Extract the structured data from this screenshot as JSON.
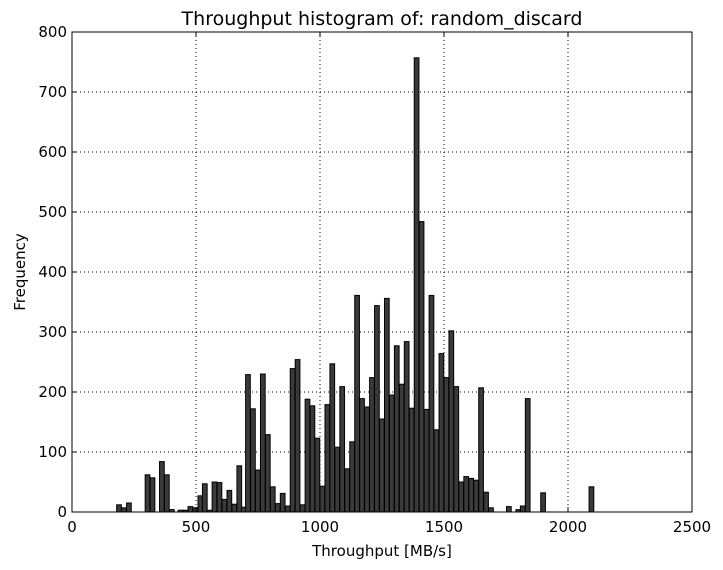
{
  "chart_data": {
    "type": "bar",
    "title": "Throughput histogram of: random_discard",
    "xlabel": "Throughput [MB/s]",
    "ylabel": "Frequency",
    "xlim": [
      0,
      2500
    ],
    "ylim": [
      0,
      800
    ],
    "x_ticks": [
      "0",
      "500",
      "1000",
      "1500",
      "2000",
      "2500"
    ],
    "y_ticks": [
      "0",
      "100",
      "200",
      "300",
      "400",
      "500",
      "600",
      "700",
      "800"
    ],
    "grid": true,
    "bar_color": "#3a3a3a",
    "bin_width": 19,
    "bins": [
      {
        "x": 180,
        "value": 12
      },
      {
        "x": 200,
        "value": 7
      },
      {
        "x": 220,
        "value": 15
      },
      {
        "x": 295,
        "value": 62
      },
      {
        "x": 315,
        "value": 57
      },
      {
        "x": 353,
        "value": 84
      },
      {
        "x": 373,
        "value": 62
      },
      {
        "x": 393,
        "value": 4
      },
      {
        "x": 428,
        "value": 3
      },
      {
        "x": 448,
        "value": 3
      },
      {
        "x": 468,
        "value": 9
      },
      {
        "x": 488,
        "value": 7
      },
      {
        "x": 508,
        "value": 27
      },
      {
        "x": 526,
        "value": 47
      },
      {
        "x": 545,
        "value": 3
      },
      {
        "x": 565,
        "value": 50
      },
      {
        "x": 585,
        "value": 49
      },
      {
        "x": 605,
        "value": 21
      },
      {
        "x": 625,
        "value": 36
      },
      {
        "x": 645,
        "value": 13
      },
      {
        "x": 665,
        "value": 77
      },
      {
        "x": 683,
        "value": 8
      },
      {
        "x": 700,
        "value": 229
      },
      {
        "x": 720,
        "value": 172
      },
      {
        "x": 740,
        "value": 70
      },
      {
        "x": 760,
        "value": 230
      },
      {
        "x": 780,
        "value": 129
      },
      {
        "x": 800,
        "value": 42
      },
      {
        "x": 820,
        "value": 14
      },
      {
        "x": 840,
        "value": 31
      },
      {
        "x": 860,
        "value": 10
      },
      {
        "x": 880,
        "value": 239
      },
      {
        "x": 900,
        "value": 254
      },
      {
        "x": 920,
        "value": 12
      },
      {
        "x": 940,
        "value": 188
      },
      {
        "x": 960,
        "value": 177
      },
      {
        "x": 980,
        "value": 123
      },
      {
        "x": 1000,
        "value": 43
      },
      {
        "x": 1020,
        "value": 179
      },
      {
        "x": 1040,
        "value": 247
      },
      {
        "x": 1060,
        "value": 108
      },
      {
        "x": 1080,
        "value": 209
      },
      {
        "x": 1100,
        "value": 72
      },
      {
        "x": 1120,
        "value": 117
      },
      {
        "x": 1140,
        "value": 361
      },
      {
        "x": 1160,
        "value": 189
      },
      {
        "x": 1180,
        "value": 175
      },
      {
        "x": 1200,
        "value": 224
      },
      {
        "x": 1220,
        "value": 344
      },
      {
        "x": 1240,
        "value": 155
      },
      {
        "x": 1260,
        "value": 356
      },
      {
        "x": 1280,
        "value": 195
      },
      {
        "x": 1300,
        "value": 277
      },
      {
        "x": 1320,
        "value": 213
      },
      {
        "x": 1340,
        "value": 284
      },
      {
        "x": 1360,
        "value": 173
      },
      {
        "x": 1380,
        "value": 757
      },
      {
        "x": 1400,
        "value": 484
      },
      {
        "x": 1420,
        "value": 171
      },
      {
        "x": 1440,
        "value": 361
      },
      {
        "x": 1460,
        "value": 137
      },
      {
        "x": 1480,
        "value": 264
      },
      {
        "x": 1500,
        "value": 224
      },
      {
        "x": 1520,
        "value": 302
      },
      {
        "x": 1540,
        "value": 209
      },
      {
        "x": 1560,
        "value": 50
      },
      {
        "x": 1580,
        "value": 59
      },
      {
        "x": 1600,
        "value": 56
      },
      {
        "x": 1620,
        "value": 53
      },
      {
        "x": 1640,
        "value": 207
      },
      {
        "x": 1660,
        "value": 33
      },
      {
        "x": 1680,
        "value": 7
      },
      {
        "x": 1752,
        "value": 9
      },
      {
        "x": 1790,
        "value": 4
      },
      {
        "x": 1808,
        "value": 10
      },
      {
        "x": 1828,
        "value": 189
      },
      {
        "x": 1890,
        "value": 32
      },
      {
        "x": 2085,
        "value": 42
      }
    ]
  }
}
